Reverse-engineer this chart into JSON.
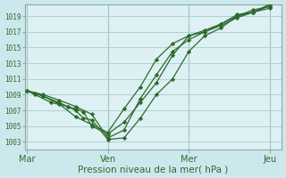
{
  "background_color": "#cce8ec",
  "plot_bg_color": "#ddf0f3",
  "grid_color": "#aacccc",
  "line_color": "#2d6a2d",
  "marker_color": "#2d6a2d",
  "xlabel": "Pression niveau de la mer( hPa )",
  "ylim": [
    1002.0,
    1020.5
  ],
  "ytick_values": [
    1003,
    1005,
    1007,
    1009,
    1011,
    1013,
    1015,
    1017,
    1019
  ],
  "xtick_labels": [
    "Mar",
    "Ven",
    "Mer",
    "Jeu"
  ],
  "xtick_positions": [
    0.0,
    0.333,
    0.667,
    1.0
  ],
  "vline_positions": [
    0.0,
    0.333,
    0.667,
    1.0
  ],
  "series": [
    {
      "x": [
        0.0,
        0.033,
        0.1,
        0.167,
        0.2,
        0.233,
        0.267,
        0.333,
        0.4,
        0.467,
        0.533,
        0.6,
        0.667,
        0.733,
        0.8,
        0.867,
        0.933,
        1.0
      ],
      "y": [
        1009.5,
        1009.0,
        1008.0,
        1007.5,
        1007.2,
        1006.8,
        1005.0,
        1004.0,
        1005.5,
        1008.0,
        1010.5,
        1014.0,
        1016.5,
        1017.0,
        1018.0,
        1019.0,
        1019.8,
        1020.2
      ]
    },
    {
      "x": [
        0.0,
        0.033,
        0.067,
        0.133,
        0.167,
        0.2,
        0.233,
        0.267,
        0.333,
        0.4,
        0.467,
        0.533,
        0.6,
        0.667,
        0.733,
        0.8,
        0.867,
        0.933,
        1.0
      ],
      "y": [
        1009.5,
        1009.2,
        1008.8,
        1008.0,
        1007.5,
        1007.0,
        1006.0,
        1005.8,
        1003.3,
        1003.5,
        1006.0,
        1009.0,
        1011.0,
        1014.5,
        1016.5,
        1017.5,
        1019.0,
        1019.5,
        1020.0
      ]
    },
    {
      "x": [
        0.0,
        0.067,
        0.133,
        0.2,
        0.267,
        0.333,
        0.4,
        0.467,
        0.533,
        0.6,
        0.667,
        0.733,
        0.8,
        0.867,
        0.933,
        1.0
      ],
      "y": [
        1009.5,
        1008.8,
        1007.8,
        1006.2,
        1005.2,
        1004.2,
        1007.2,
        1010.0,
        1013.5,
        1015.5,
        1016.5,
        1017.2,
        1018.0,
        1019.2,
        1019.5,
        1020.3
      ]
    },
    {
      "x": [
        0.0,
        0.067,
        0.133,
        0.2,
        0.267,
        0.333,
        0.4,
        0.467,
        0.533,
        0.6,
        0.667,
        0.733,
        0.8,
        0.867,
        0.933,
        1.0
      ],
      "y": [
        1009.5,
        1009.0,
        1008.3,
        1007.5,
        1006.5,
        1003.5,
        1004.5,
        1008.5,
        1011.5,
        1014.5,
        1016.0,
        1017.0,
        1017.8,
        1018.8,
        1019.5,
        1020.5
      ]
    }
  ]
}
